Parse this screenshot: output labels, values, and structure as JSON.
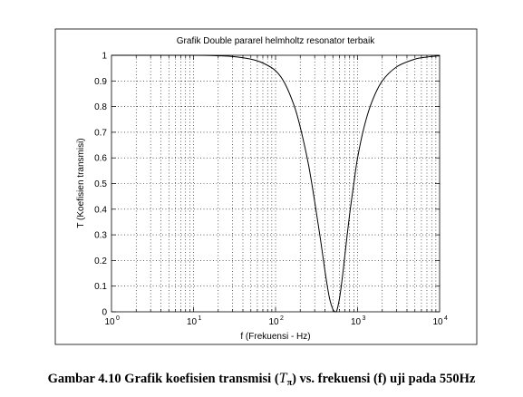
{
  "figure": {
    "caption_prefix": "Gambar 4.10 Grafik koefisien transmisi (",
    "caption_symbol": "T",
    "caption_subscript": "π",
    "caption_suffix": ") vs. frekuensi (f) uji pada 550Hz"
  },
  "chart_data": {
    "type": "line",
    "title": "Grafik Double pararel helmholtz resonator terbaik",
    "xlabel": "f  (Frekuensi - Hz)",
    "ylabel": "T  (Koefisien transmisi)",
    "xscale": "log",
    "xlim": [
      1,
      10000
    ],
    "ylim": [
      0,
      1
    ],
    "grid": true,
    "x_ticks": [
      {
        "base": "10",
        "exp": "0"
      },
      {
        "base": "10",
        "exp": "1"
      },
      {
        "base": "10",
        "exp": "2"
      },
      {
        "base": "10",
        "exp": "3"
      },
      {
        "base": "10",
        "exp": "4"
      }
    ],
    "y_ticks": [
      "0",
      "0.1",
      "0.2",
      "0.3",
      "0.4",
      "0.5",
      "0.6",
      "0.7",
      "0.8",
      "0.9",
      "1"
    ],
    "series": [
      {
        "color": "#000000",
        "x": [
          1,
          10,
          20,
          30,
          50,
          70,
          100,
          130,
          170,
          200,
          250,
          300,
          350,
          400,
          450,
          500,
          550,
          600,
          650,
          700,
          800,
          900,
          1000,
          1200,
          1500,
          2000,
          3000,
          5000,
          7000,
          10000
        ],
        "y": [
          1.0,
          1.0,
          0.998,
          0.995,
          0.985,
          0.97,
          0.94,
          0.89,
          0.8,
          0.72,
          0.58,
          0.43,
          0.29,
          0.16,
          0.06,
          0.01,
          0.0,
          0.05,
          0.13,
          0.22,
          0.38,
          0.5,
          0.6,
          0.72,
          0.82,
          0.9,
          0.955,
          0.985,
          0.993,
          0.998
        ]
      }
    ]
  }
}
